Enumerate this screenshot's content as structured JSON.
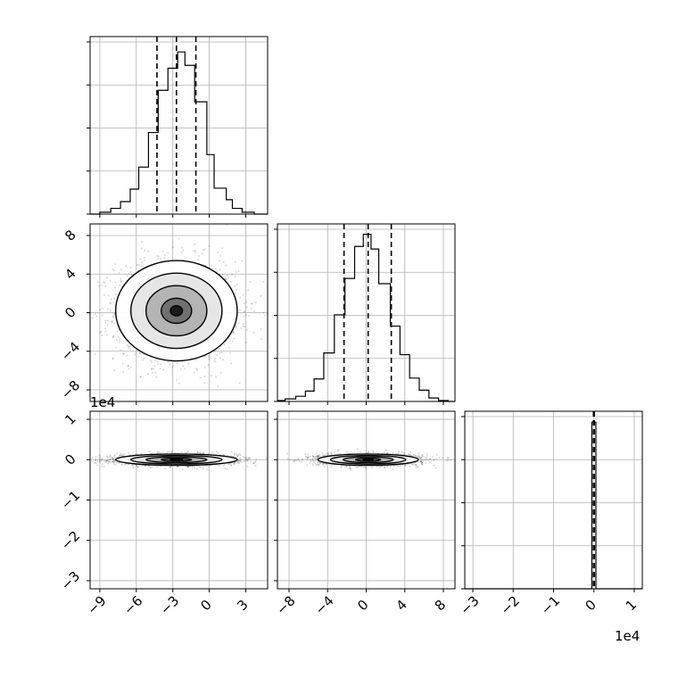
{
  "chart_data": {
    "type": "corner",
    "parameters": 3,
    "panels": [
      {
        "id": "hist-1",
        "kind": "histogram",
        "x_range": [
          -9.8,
          4.8
        ],
        "bins": [
          {
            "lo": -9.8,
            "hi": -9.0,
            "v": 0
          },
          {
            "lo": -9.0,
            "hi": -8.1,
            "v": 2
          },
          {
            "lo": -8.1,
            "hi": -7.3,
            "v": 6
          },
          {
            "lo": -7.3,
            "hi": -6.5,
            "v": 13
          },
          {
            "lo": -6.5,
            "hi": -5.8,
            "v": 26
          },
          {
            "lo": -5.8,
            "hi": -5.0,
            "v": 49
          },
          {
            "lo": -5.0,
            "hi": -4.2,
            "v": 85
          },
          {
            "lo": -4.2,
            "hi": -3.4,
            "v": 129
          },
          {
            "lo": -3.4,
            "hi": -2.6,
            "v": 152
          },
          {
            "lo": -2.6,
            "hi": -2.0,
            "v": 169
          },
          {
            "lo": -2.0,
            "hi": -1.2,
            "v": 155
          },
          {
            "lo": -1.2,
            "hi": -0.2,
            "v": 117
          },
          {
            "lo": -0.2,
            "hi": 0.4,
            "v": 62
          },
          {
            "lo": 0.4,
            "hi": 1.4,
            "v": 27
          },
          {
            "lo": 1.4,
            "hi": 1.9,
            "v": 15
          },
          {
            "lo": 1.9,
            "hi": 2.7,
            "v": 6
          },
          {
            "lo": 2.7,
            "hi": 3.7,
            "v": 2
          },
          {
            "lo": 3.7,
            "hi": 4.8,
            "v": 0
          }
        ],
        "y_max": 185,
        "quantiles": [
          -4.3,
          -2.7,
          -1.1
        ]
      },
      {
        "id": "hist-2",
        "kind": "histogram",
        "x_range": [
          -9.2,
          9.2
        ],
        "bins": [
          {
            "lo": -9.2,
            "hi": -8.4,
            "v": 1
          },
          {
            "lo": -8.4,
            "hi": -7.3,
            "v": 3
          },
          {
            "lo": -7.3,
            "hi": -6.3,
            "v": 6
          },
          {
            "lo": -6.3,
            "hi": -5.4,
            "v": 12
          },
          {
            "lo": -5.4,
            "hi": -4.4,
            "v": 26
          },
          {
            "lo": -4.4,
            "hi": -3.3,
            "v": 56
          },
          {
            "lo": -3.3,
            "hi": -2.2,
            "v": 100
          },
          {
            "lo": -2.2,
            "hi": -1.2,
            "v": 142
          },
          {
            "lo": -1.2,
            "hi": -0.3,
            "v": 179
          },
          {
            "lo": -0.3,
            "hi": 0.5,
            "v": 193
          },
          {
            "lo": 0.5,
            "hi": 1.3,
            "v": 176
          },
          {
            "lo": 1.3,
            "hi": 2.5,
            "v": 136
          },
          {
            "lo": 2.5,
            "hi": 3.5,
            "v": 87
          },
          {
            "lo": 3.5,
            "hi": 4.5,
            "v": 54
          },
          {
            "lo": 4.5,
            "hi": 5.5,
            "v": 27
          },
          {
            "lo": 5.5,
            "hi": 6.5,
            "v": 13
          },
          {
            "lo": 6.5,
            "hi": 7.5,
            "v": 4
          },
          {
            "lo": 7.5,
            "hi": 8.5,
            "v": 1
          },
          {
            "lo": 8.5,
            "hi": 9.2,
            "v": 0
          }
        ],
        "y_max": 205,
        "quantiles": [
          -2.3,
          0.2,
          2.6
        ]
      },
      {
        "id": "hist-3",
        "kind": "histogram",
        "x_range": [
          -3.2,
          1.2
        ],
        "bins": [
          {
            "lo": -3.2,
            "hi": -0.05,
            "v": 0
          },
          {
            "lo": -0.05,
            "hi": 0.05,
            "v": 92
          },
          {
            "lo": 0.05,
            "hi": 1.2,
            "v": 0
          }
        ],
        "y_max": 98,
        "quantiles": [
          -0.01,
          0.0,
          0.01
        ]
      },
      {
        "id": "contour-2-1",
        "kind": "contour",
        "x_range": [
          -9.8,
          4.8
        ],
        "y_range": [
          -9.2,
          9.2
        ],
        "center": [
          -2.7,
          0.2
        ],
        "sigma": [
          2.5,
          2.6
        ],
        "points": 2200
      },
      {
        "id": "contour-3-1",
        "kind": "contour",
        "x_range": [
          -9.8,
          4.8
        ],
        "y_range": [
          -3.2,
          1.2
        ],
        "center": [
          -2.7,
          0.0
        ],
        "sigma": [
          2.5,
          0.07
        ],
        "points": 2200
      },
      {
        "id": "contour-3-2",
        "kind": "contour",
        "x_range": [
          -9.2,
          9.2
        ],
        "y_range": [
          -3.2,
          1.2
        ],
        "center": [
          0.2,
          0.0
        ],
        "sigma": [
          2.6,
          0.07
        ],
        "points": 2200
      }
    ],
    "ticks": {
      "x_col1": [
        -9,
        -6,
        -3,
        0,
        3
      ],
      "x_col2": [
        -8,
        -4,
        0,
        4,
        8
      ],
      "x_col3": [
        -3,
        -2,
        -1,
        0,
        1
      ],
      "y_row2": [
        8,
        4,
        0,
        -4,
        -8
      ],
      "y_row3": [
        1,
        0,
        -1,
        -2,
        -3
      ]
    },
    "offset_texts": {
      "left": "1e4",
      "bottom": "1e4"
    },
    "grid": true
  }
}
